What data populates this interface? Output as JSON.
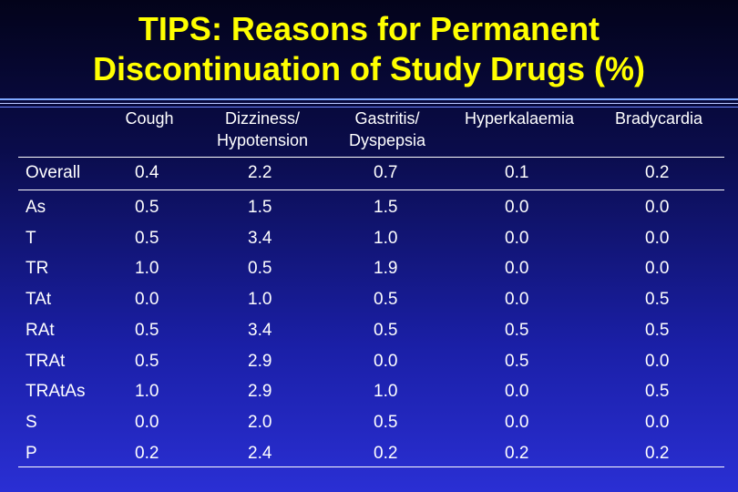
{
  "title": {
    "line1": "TIPS: Reasons for Permanent",
    "line2": "Discontinuation of Study Drugs (%)"
  },
  "colors": {
    "title": "#ffff00",
    "text": "#ffffff",
    "background_top": "#03031a",
    "background_bottom": "#2a2fd4"
  },
  "table": {
    "headers": [
      "Cough",
      "Dizziness/\nHypotension",
      "Gastritis/\nDyspepsia",
      "Hyperkalaemia",
      "Bradycardia"
    ],
    "overall": {
      "label": "Overall",
      "values": [
        "0.4",
        "2.2",
        "0.7",
        "0.1",
        "0.2"
      ]
    },
    "rows": [
      {
        "label": "As",
        "values": [
          "0.5",
          "1.5",
          "1.5",
          "0.0",
          "0.0"
        ]
      },
      {
        "label": "T",
        "values": [
          "0.5",
          "3.4",
          "1.0",
          "0.0",
          "0.0"
        ]
      },
      {
        "label": "TR",
        "values": [
          "1.0",
          "0.5",
          "1.9",
          "0.0",
          "0.0"
        ]
      },
      {
        "label": "TAt",
        "values": [
          "0.0",
          "1.0",
          "0.5",
          "0.0",
          "0.5"
        ]
      },
      {
        "label": "RAt",
        "values": [
          "0.5",
          "3.4",
          "0.5",
          "0.5",
          "0.5"
        ]
      },
      {
        "label": "TRAt",
        "values": [
          "0.5",
          "2.9",
          "0.0",
          "0.5",
          "0.0"
        ]
      },
      {
        "label": "TRAtAs",
        "values": [
          "1.0",
          "2.9",
          "1.0",
          "0.0",
          "0.5"
        ]
      },
      {
        "label": "S",
        "values": [
          "0.0",
          "2.0",
          "0.5",
          "0.0",
          "0.0"
        ]
      },
      {
        "label": "P",
        "values": [
          "0.2",
          "2.4",
          "0.2",
          "0.2",
          "0.2"
        ]
      }
    ]
  }
}
